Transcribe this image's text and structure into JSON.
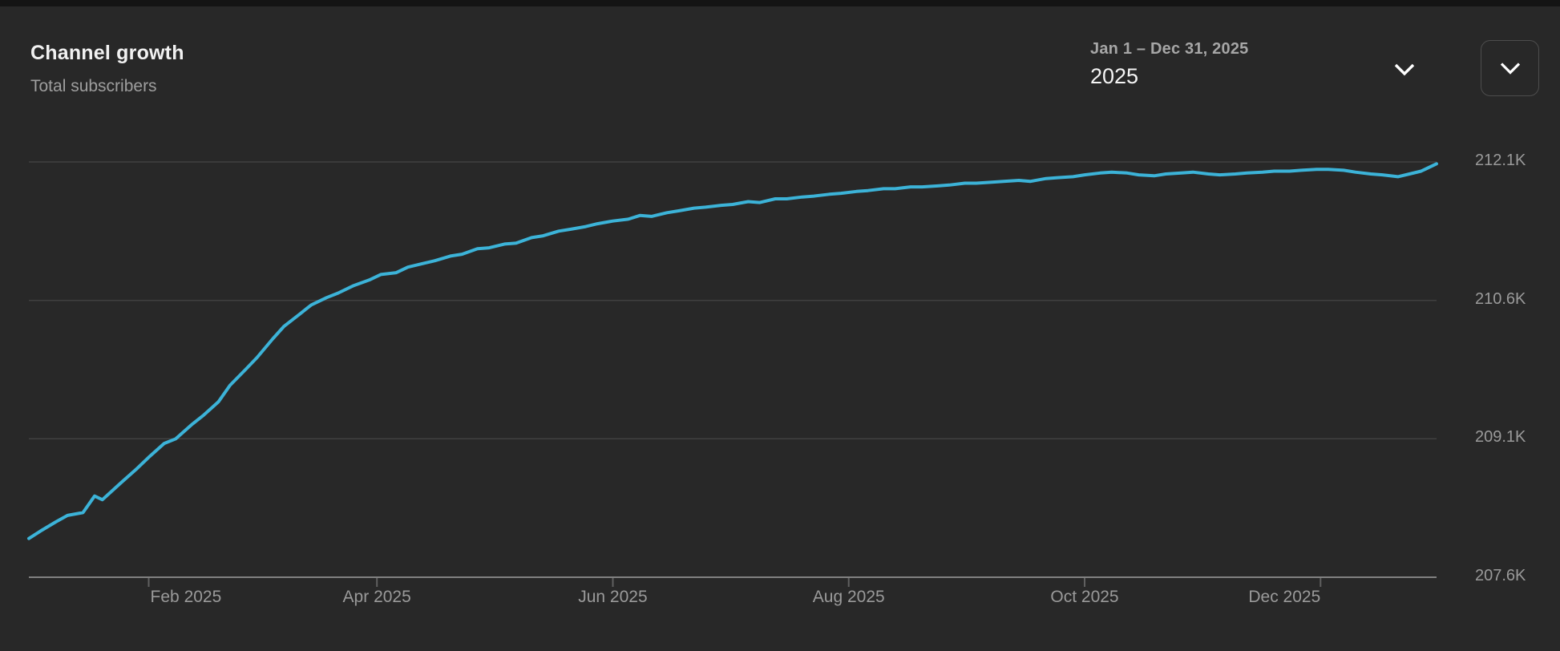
{
  "header": {
    "title": "Channel growth",
    "subtitle": "Total subscribers",
    "date_range": {
      "label": "Jan 1 – Dec 31, 2025",
      "selected": "2025"
    }
  },
  "icons": {
    "date_dropdown": "chevron-down-icon",
    "collapse": "chevron-down-icon"
  },
  "colors": {
    "card_background": "#282828",
    "page_background": "#141414",
    "line": "#3cb3d8",
    "gridline": "#404040",
    "axis_line": "#818181",
    "tick": "#606060",
    "text_primary": "#f1f1f1",
    "text_secondary": "#9e9e9e"
  },
  "chart_data": {
    "type": "line",
    "title": "Channel growth",
    "metric": "Total subscribers",
    "x_unit": "day_of_year_2025",
    "x_range_days": [
      0,
      364
    ],
    "grid": true,
    "legend": "none",
    "y_axis": {
      "tick_labels": [
        "212.1K",
        "210.6K",
        "209.1K",
        "207.6K"
      ],
      "tick_values_k": [
        212.1,
        210.6,
        209.1,
        207.6
      ],
      "min_k": 207.6,
      "max_k": 212.1
    },
    "x_axis": {
      "ticks": [
        {
          "label": "Feb 2025",
          "day": 31,
          "align": "left"
        },
        {
          "label": "Apr 2025",
          "day": 90,
          "align": "center"
        },
        {
          "label": "Jun 2025",
          "day": 151,
          "align": "center"
        },
        {
          "label": "Aug 2025",
          "day": 212,
          "align": "center"
        },
        {
          "label": "Oct 2025",
          "day": 273,
          "align": "center"
        },
        {
          "label": "Dec 2025",
          "day": 334,
          "align": "right"
        }
      ]
    },
    "series": [
      {
        "name": "Total subscribers",
        "color": "#3cb3d8",
        "points_day_valueK": [
          [
            0,
            208.02
          ],
          [
            3,
            208.1
          ],
          [
            7,
            208.2
          ],
          [
            10,
            208.27
          ],
          [
            14,
            208.3
          ],
          [
            17,
            208.48
          ],
          [
            19,
            208.44
          ],
          [
            24,
            208.63
          ],
          [
            28,
            208.78
          ],
          [
            31,
            208.9
          ],
          [
            35,
            209.05
          ],
          [
            38,
            209.1
          ],
          [
            42,
            209.25
          ],
          [
            45,
            209.35
          ],
          [
            49,
            209.5
          ],
          [
            52,
            209.68
          ],
          [
            56,
            209.85
          ],
          [
            59,
            209.98
          ],
          [
            63,
            210.18
          ],
          [
            66,
            210.32
          ],
          [
            70,
            210.45
          ],
          [
            73,
            210.55
          ],
          [
            77,
            210.63
          ],
          [
            80,
            210.68
          ],
          [
            84,
            210.76
          ],
          [
            88,
            210.82
          ],
          [
            91,
            210.88
          ],
          [
            95,
            210.9
          ],
          [
            98,
            210.96
          ],
          [
            102,
            211.0
          ],
          [
            105,
            211.03
          ],
          [
            109,
            211.08
          ],
          [
            112,
            211.1
          ],
          [
            116,
            211.16
          ],
          [
            119,
            211.17
          ],
          [
            123,
            211.21
          ],
          [
            126,
            211.22
          ],
          [
            130,
            211.28
          ],
          [
            133,
            211.3
          ],
          [
            137,
            211.35
          ],
          [
            140,
            211.37
          ],
          [
            144,
            211.4
          ],
          [
            147,
            211.43
          ],
          [
            151,
            211.46
          ],
          [
            155,
            211.48
          ],
          [
            158,
            211.52
          ],
          [
            161,
            211.51
          ],
          [
            165,
            211.55
          ],
          [
            168,
            211.57
          ],
          [
            172,
            211.6
          ],
          [
            175,
            211.61
          ],
          [
            179,
            211.63
          ],
          [
            182,
            211.64
          ],
          [
            186,
            211.67
          ],
          [
            189,
            211.66
          ],
          [
            193,
            211.7
          ],
          [
            196,
            211.7
          ],
          [
            200,
            211.72
          ],
          [
            203,
            211.73
          ],
          [
            207,
            211.75
          ],
          [
            210,
            211.76
          ],
          [
            214,
            211.78
          ],
          [
            217,
            211.79
          ],
          [
            221,
            211.81
          ],
          [
            224,
            211.81
          ],
          [
            228,
            211.83
          ],
          [
            231,
            211.83
          ],
          [
            235,
            211.84
          ],
          [
            238,
            211.85
          ],
          [
            242,
            211.87
          ],
          [
            245,
            211.87
          ],
          [
            249,
            211.88
          ],
          [
            252,
            211.89
          ],
          [
            256,
            211.9
          ],
          [
            259,
            211.89
          ],
          [
            263,
            211.92
          ],
          [
            266,
            211.93
          ],
          [
            270,
            211.94
          ],
          [
            273,
            211.96
          ],
          [
            277,
            211.98
          ],
          [
            280,
            211.99
          ],
          [
            284,
            211.98
          ],
          [
            287,
            211.96
          ],
          [
            291,
            211.95
          ],
          [
            294,
            211.97
          ],
          [
            298,
            211.98
          ],
          [
            301,
            211.99
          ],
          [
            305,
            211.97
          ],
          [
            308,
            211.96
          ],
          [
            312,
            211.97
          ],
          [
            315,
            211.98
          ],
          [
            319,
            211.99
          ],
          [
            322,
            212.0
          ],
          [
            326,
            212.0
          ],
          [
            329,
            212.01
          ],
          [
            333,
            212.02
          ],
          [
            336,
            212.02
          ],
          [
            340,
            212.01
          ],
          [
            343,
            211.99
          ],
          [
            347,
            211.97
          ],
          [
            350,
            211.96
          ],
          [
            354,
            211.94
          ],
          [
            357,
            211.97
          ],
          [
            360,
            212.0
          ],
          [
            364,
            212.08
          ]
        ]
      }
    ]
  }
}
